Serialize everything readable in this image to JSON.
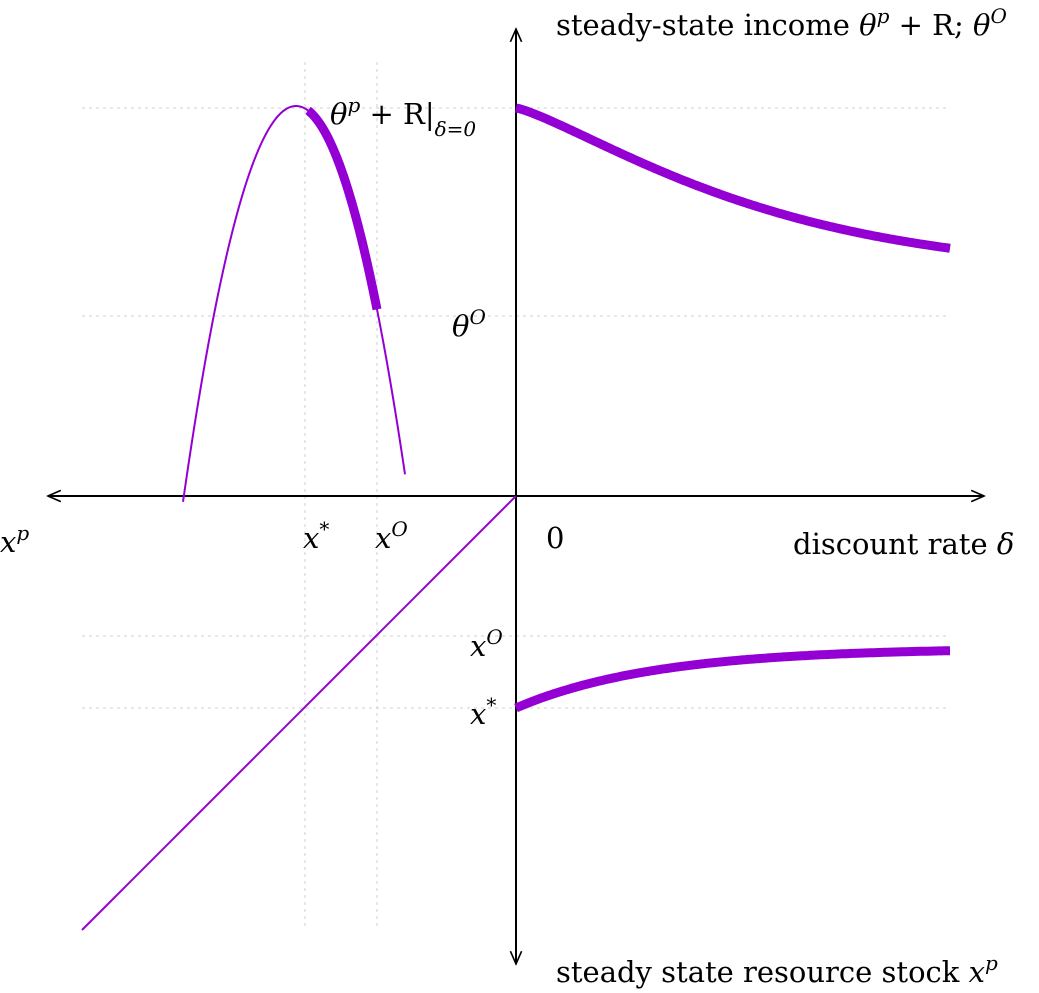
{
  "colors": {
    "curve": "#9400D3",
    "axis": "#000000",
    "grid": "#cfcfcf"
  },
  "labels": {
    "top_axis": {
      "text": "steady-state income ",
      "theta": "θ",
      "p": "p",
      "plus_r": " + R; ",
      "theta2": "θ",
      "O": "O"
    },
    "peak": {
      "theta": "θ",
      "p": "p",
      "plus_r": " + R|",
      "sub": "δ=0"
    },
    "theta_o": {
      "theta": "θ",
      "O": "O"
    },
    "left_axis": {
      "x": "x",
      "p": "p"
    },
    "x_star_h": {
      "x": "x",
      "star": "*"
    },
    "x_o_h": {
      "x": "x",
      "O": "O"
    },
    "zero": "0",
    "right_axis": {
      "text": "discount rate ",
      "delta": "δ"
    },
    "x_o_v": {
      "x": "x",
      "O": "O"
    },
    "x_star_v": {
      "x": "x",
      "star": "*"
    },
    "bottom_axis": {
      "text": "steady state resource stock ",
      "x": "x",
      "p": "p"
    }
  }
}
